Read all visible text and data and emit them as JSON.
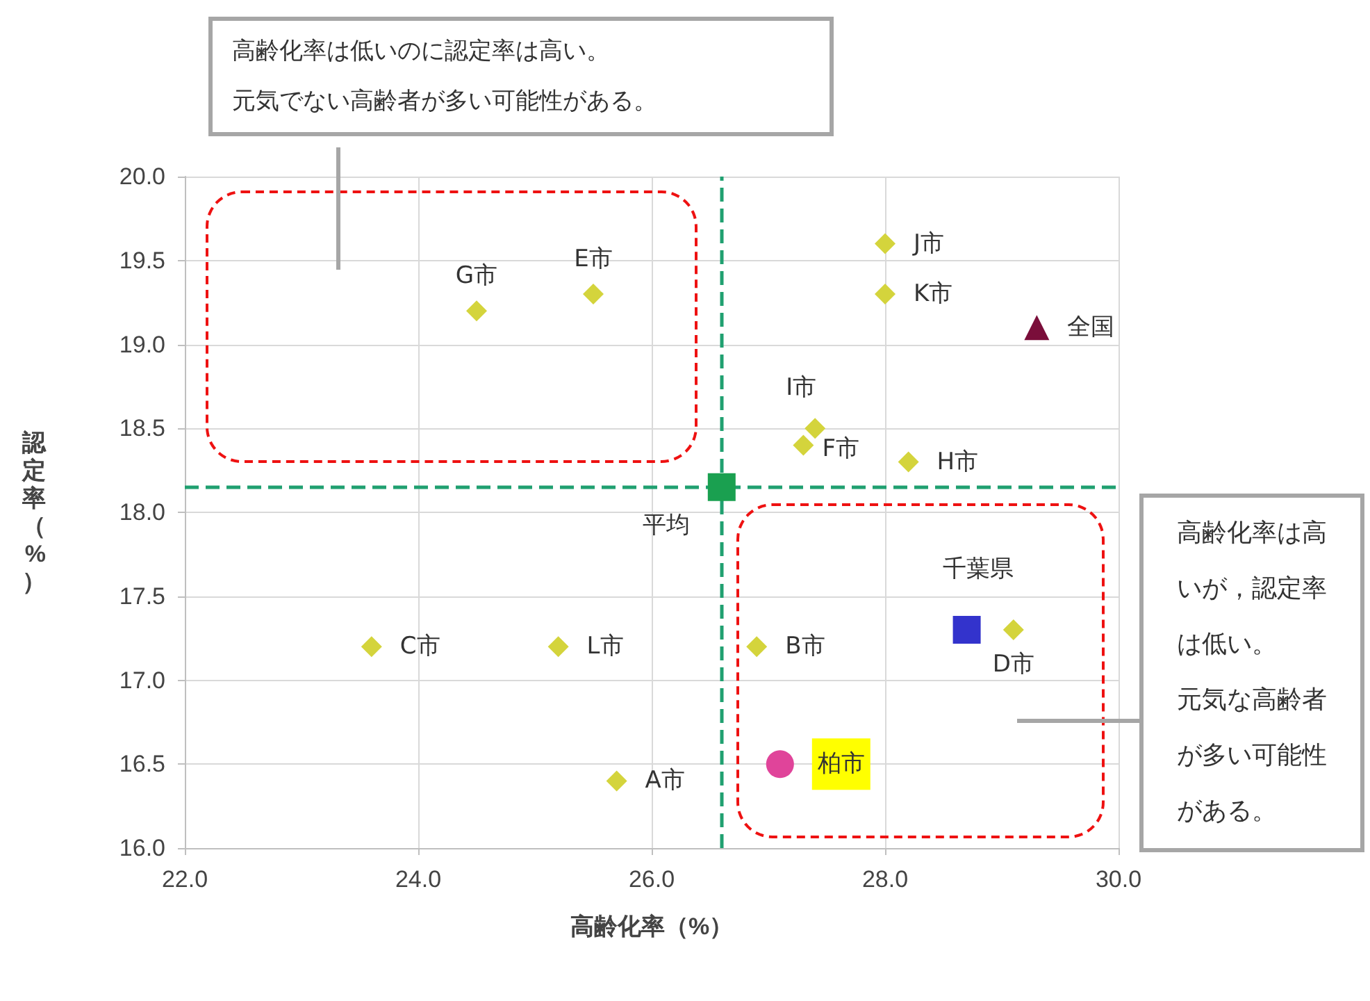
{
  "chart_data": {
    "type": "scatter",
    "xlabel": "高齢化率（%）",
    "ylabel": "認定率（%）",
    "xlim": [
      22,
      30
    ],
    "ylim": [
      16,
      20
    ],
    "xticks": [
      {
        "value": 22,
        "label": "22.0"
      },
      {
        "value": 24,
        "label": "24.0"
      },
      {
        "value": 26,
        "label": "26.0"
      },
      {
        "value": 28,
        "label": "28.0"
      },
      {
        "value": 30,
        "label": "30.0"
      }
    ],
    "yticks": [
      {
        "value": 16,
        "label": "16.0"
      },
      {
        "value": 16.5,
        "label": "16.5"
      },
      {
        "value": 17,
        "label": "17.0"
      },
      {
        "value": 17.5,
        "label": "17.5"
      },
      {
        "value": 18,
        "label": "18.0"
      },
      {
        "value": 18.5,
        "label": "18.5"
      },
      {
        "value": 19,
        "label": "19.0"
      },
      {
        "value": 19.5,
        "label": "19.5"
      },
      {
        "value": 20,
        "label": "20.0"
      }
    ],
    "grid": true,
    "legend": false,
    "series": [
      {
        "name": "G市",
        "color": "#d4d43c",
        "marker": "diamond",
        "x": [
          24.5
        ],
        "values": [
          19.2
        ]
      },
      {
        "name": "E市",
        "color": "#d4d43c",
        "marker": "diamond",
        "x": [
          25.5
        ],
        "values": [
          19.3
        ]
      },
      {
        "name": "J市",
        "color": "#d4d43c",
        "marker": "diamond",
        "x": [
          28.0
        ],
        "values": [
          19.6
        ]
      },
      {
        "name": "K市",
        "color": "#d4d43c",
        "marker": "diamond",
        "x": [
          28.0
        ],
        "values": [
          19.3
        ]
      },
      {
        "name": "全国",
        "color": "#7a0e3a",
        "marker": "triangle",
        "x": [
          29.3
        ],
        "values": [
          19.1
        ]
      },
      {
        "name": "I市",
        "color": "#d4d43c",
        "marker": "diamond",
        "x": [
          27.4
        ],
        "values": [
          18.5
        ]
      },
      {
        "name": "F市",
        "color": "#d4d43c",
        "marker": "diamond",
        "x": [
          27.3
        ],
        "values": [
          18.4
        ]
      },
      {
        "name": "H市",
        "color": "#d4d43c",
        "marker": "diamond",
        "x": [
          28.2
        ],
        "values": [
          18.3
        ]
      },
      {
        "name": "平均",
        "color": "#1aa050",
        "marker": "square",
        "x": [
          26.6
        ],
        "values": [
          18.15
        ]
      },
      {
        "name": "千葉県",
        "color": "#3333cc",
        "marker": "square",
        "x": [
          28.7
        ],
        "values": [
          17.3
        ]
      },
      {
        "name": "D市",
        "color": "#d4d43c",
        "marker": "diamond",
        "x": [
          29.1
        ],
        "values": [
          17.3
        ]
      },
      {
        "name": "C市",
        "color": "#d4d43c",
        "marker": "diamond",
        "x": [
          23.6
        ],
        "values": [
          17.2
        ]
      },
      {
        "name": "L市",
        "color": "#d4d43c",
        "marker": "diamond",
        "x": [
          25.2
        ],
        "values": [
          17.2
        ]
      },
      {
        "name": "B市",
        "color": "#d4d43c",
        "marker": "diamond",
        "x": [
          26.9
        ],
        "values": [
          17.2
        ]
      },
      {
        "name": "柏市",
        "color": "#e0449a",
        "marker": "circle",
        "x": [
          27.1
        ],
        "values": [
          16.5
        ]
      },
      {
        "name": "A市",
        "color": "#d4d43c",
        "marker": "diamond",
        "x": [
          25.7
        ],
        "values": [
          16.4
        ]
      }
    ],
    "ref_lines": [
      {
        "axis": "x",
        "value": 26.6,
        "color": "#20a070",
        "line_style": "dashed"
      },
      {
        "axis": "y",
        "value": 18.15,
        "color": "#20a070",
        "line_style": "dashed"
      }
    ],
    "annotations": [
      "高齢化率は低いのに認定率は高い。元気でない高齢者が多い可能性がある。",
      "高齢化率は高いが，認定率は低い。元気な高齢者が多い可能性がある。"
    ]
  }
}
